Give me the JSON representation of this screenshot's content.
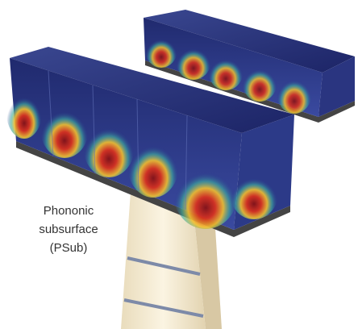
{
  "label": {
    "lines": [
      "Phononic",
      "subsurface",
      "(PSub)"
    ]
  }
}
